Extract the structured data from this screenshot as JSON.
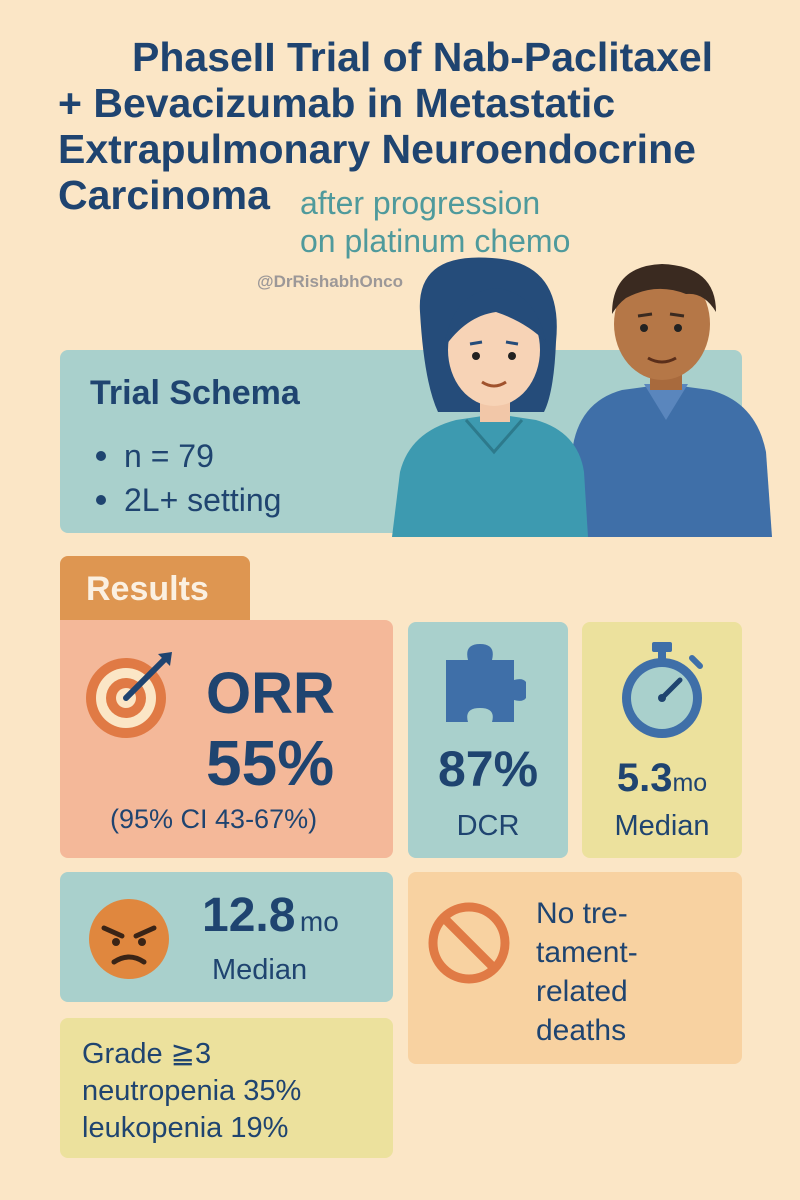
{
  "header": {
    "title_lines": [
      "PhaseII Trial of Nab-Paclitaxel",
      "+ Bevacizumab in Metastatic",
      "Extrapulmonary Neuroendocrine",
      "Carcinoma"
    ],
    "subtitle_lines": [
      "after progression",
      "on platinum chemo"
    ],
    "handle": "@DrRishabhOnco"
  },
  "schema": {
    "title": "Trial Schema",
    "items": [
      "n = 79",
      "2L+ setting"
    ]
  },
  "results": {
    "label": "Results",
    "orr": {
      "label": "ORR",
      "value": "55%",
      "ci": "(95% CI 43-67%)"
    },
    "dcr": {
      "value": "87%",
      "label": "DCR"
    },
    "pfs": {
      "value": "5.3",
      "unit": "mo",
      "label": "Median"
    },
    "os": {
      "value": "12.8",
      "unit": "mo",
      "label": "Median"
    },
    "deaths": {
      "lines": [
        "No tre-",
        "tament-",
        "related",
        "deaths"
      ]
    },
    "grade": {
      "lines": [
        "Grade ≧3",
        "neutropenia 35%",
        "leukopenia 19%"
      ]
    }
  },
  "icons": {
    "target": "target-icon",
    "puzzle": "puzzle-icon",
    "stopwatch": "stopwatch-icon",
    "angry": "angry-face-icon",
    "prohibit": "prohibited-icon"
  },
  "colors": {
    "background": "#fbe6c6",
    "navy": "#1f4470",
    "teal_text": "#4f9a9c",
    "teal_card": "#a9d0cc",
    "salmon_card": "#f4b899",
    "yellow_card": "#ece19d",
    "peach_card": "#f8d2a1",
    "orange_tab": "#de9651"
  }
}
